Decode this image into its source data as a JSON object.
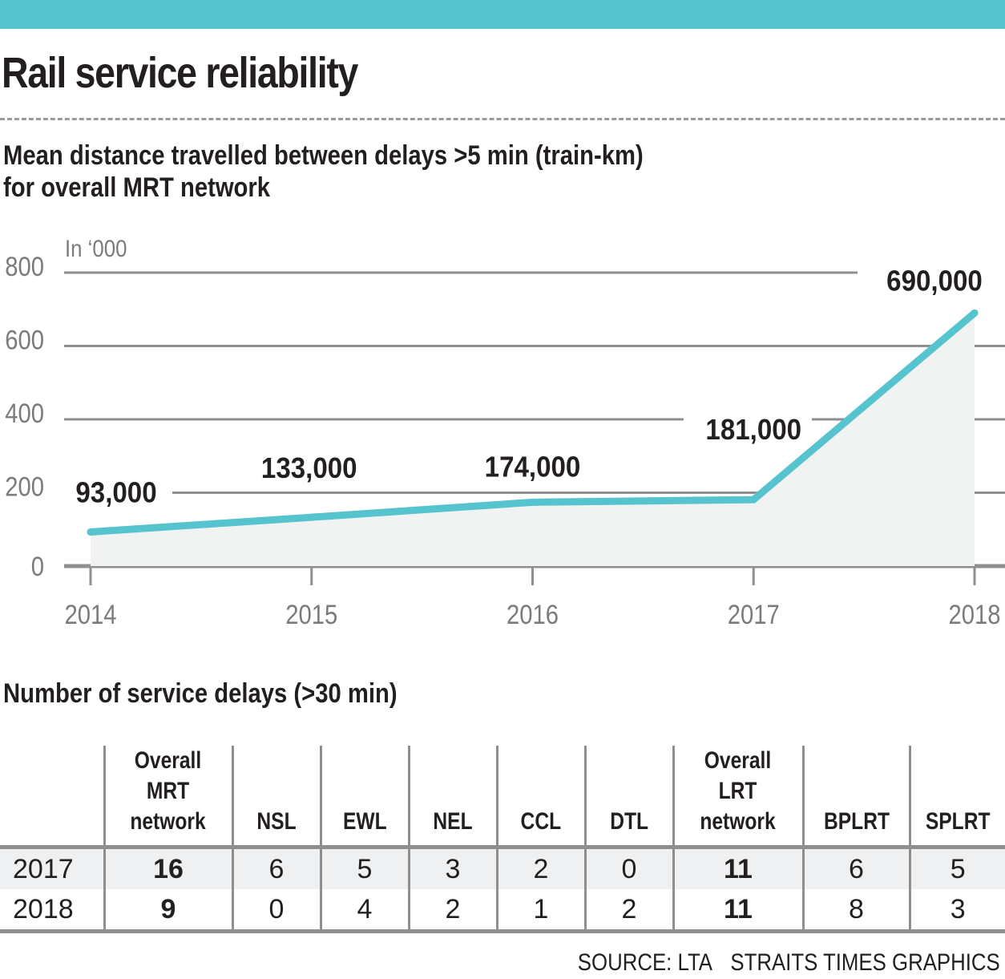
{
  "header": {
    "accent_color": "#56c4cf",
    "title": "Rail service reliability"
  },
  "chart_data": {
    "type": "area",
    "title": "Mean distance travelled between delays >5 min (train-km) for overall MRT network",
    "title_lines": [
      "Mean distance travelled between delays >5 min (train-km)",
      "for overall MRT network"
    ],
    "unit_label": "In ‘000",
    "xlabel": "",
    "ylabel": "",
    "x": [
      "2014",
      "2015",
      "2016",
      "2017",
      "2018"
    ],
    "values": [
      93,
      133,
      174,
      181,
      690
    ],
    "data_labels": [
      "93,000",
      "133,000",
      "174,000",
      "181,000",
      "690,000"
    ],
    "yticks": [
      0,
      200,
      400,
      600,
      800
    ],
    "ytick_labels": [
      "0",
      "200",
      "400",
      "600",
      "800"
    ],
    "ylim": [
      0,
      800
    ],
    "grid": true,
    "legend": "none",
    "line_color": "#56c4cf",
    "fill_color": "#f1f2f2"
  },
  "table": {
    "title": "Number of service delays (>30 min)",
    "columns": [
      {
        "label": "",
        "lines": []
      },
      {
        "label": "Overall MRT network",
        "lines": [
          "Overall",
          "MRT",
          "network"
        ]
      },
      {
        "label": "NSL",
        "lines": [
          "NSL"
        ]
      },
      {
        "label": "EWL",
        "lines": [
          "EWL"
        ]
      },
      {
        "label": "NEL",
        "lines": [
          "NEL"
        ]
      },
      {
        "label": "CCL",
        "lines": [
          "CCL"
        ]
      },
      {
        "label": "DTL",
        "lines": [
          "DTL"
        ]
      },
      {
        "label": "Overall LRT network",
        "lines": [
          "Overall",
          "LRT",
          "network"
        ]
      },
      {
        "label": "BPLRT",
        "lines": [
          "BPLRT"
        ]
      },
      {
        "label": "SPLRT",
        "lines": [
          "SPLRT"
        ]
      }
    ],
    "rows": [
      {
        "year": "2017",
        "cells": [
          "16",
          "6",
          "5",
          "3",
          "2",
          "0",
          "11",
          "6",
          "5"
        ]
      },
      {
        "year": "2018",
        "cells": [
          "9",
          "0",
          "4",
          "2",
          "1",
          "2",
          "11",
          "8",
          "3"
        ]
      }
    ]
  },
  "footer": {
    "source": "SOURCE: LTA",
    "credit": "STRAITS TIMES GRAPHICS"
  }
}
